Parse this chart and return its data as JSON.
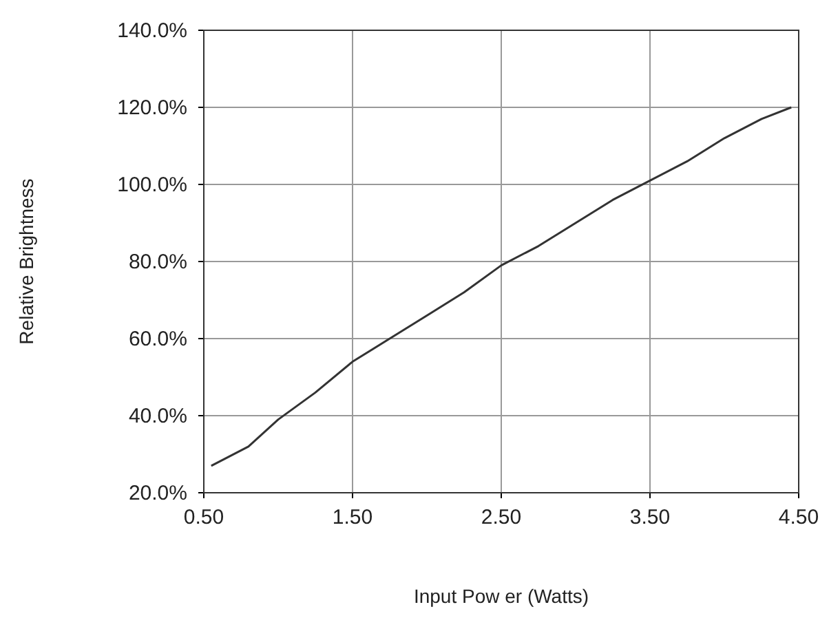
{
  "chart_data": {
    "type": "line",
    "xlabel": "Input Pow er (Watts)",
    "ylabel": "Relative Brightness",
    "x": [
      0.55,
      0.8,
      1.0,
      1.25,
      1.5,
      1.75,
      2.0,
      2.25,
      2.5,
      2.75,
      3.0,
      3.25,
      3.5,
      3.75,
      4.0,
      4.25,
      4.45
    ],
    "series": [
      {
        "color": "#333333",
        "values": [
          27,
          32,
          39,
          46,
          54,
          60,
          66,
          72,
          79,
          84,
          90,
          96,
          101,
          106,
          112,
          117,
          120
        ]
      }
    ],
    "xlim": [
      0.5,
      4.5
    ],
    "xticks": [
      {
        "value": 0.5,
        "label": "0.50"
      },
      {
        "value": 1.5,
        "label": "1.50"
      },
      {
        "value": 2.5,
        "label": "2.50"
      },
      {
        "value": 3.5,
        "label": "3.50"
      },
      {
        "value": 4.5,
        "label": "4.50"
      }
    ],
    "ylim": [
      20,
      140
    ],
    "yticks": [
      {
        "value": 20,
        "label": "20.0%"
      },
      {
        "value": 40,
        "label": "40.0%"
      },
      {
        "value": 60,
        "label": "60.0%"
      },
      {
        "value": 80,
        "label": "80.0%"
      },
      {
        "value": 100,
        "label": "100.0%"
      },
      {
        "value": 120,
        "label": "120.0%"
      },
      {
        "value": 140,
        "label": "140.0%"
      }
    ],
    "grid": true,
    "marker": "none",
    "line_style": "solid"
  }
}
